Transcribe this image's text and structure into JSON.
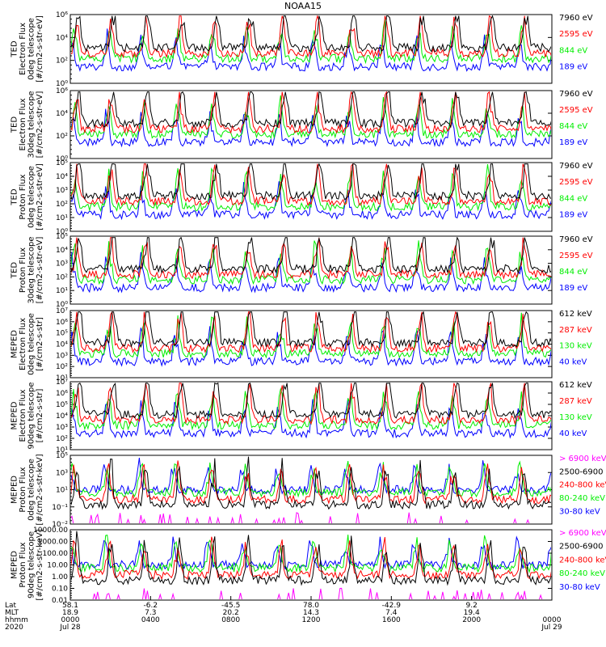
{
  "title": "NOAA15",
  "colors": {
    "black": "#000000",
    "blue": "#0000ff",
    "green": "#00ee00",
    "red": "#ff0000",
    "magenta": "#ff00ff",
    "white": "#ffffff"
  },
  "chart_data": [
    {
      "type": "line",
      "ylabel": [
        "TED",
        "Electron Flux",
        "0deg telescope",
        "[#/cm2-s-str-eV]"
      ],
      "yticks": [
        "10⁰",
        "10²",
        "10⁴",
        "10⁶"
      ],
      "ylim": [
        1,
        1000000
      ],
      "scale": "log",
      "series": [
        {
          "name": "7960 eV",
          "color": "#000000"
        },
        {
          "name": "2595 eV",
          "color": "#ff0000"
        },
        {
          "name": "844 eV",
          "color": "#00ee00"
        },
        {
          "name": "189 eV",
          "color": "#0000ff"
        }
      ]
    },
    {
      "type": "line",
      "ylabel": [
        "TED",
        "Electron Flux",
        "30deg telescope",
        "[#/cm2-s-str-eV]"
      ],
      "yticks": [
        "10⁰",
        "10²",
        "10⁴",
        "10⁶"
      ],
      "ylim": [
        1,
        1000000
      ],
      "scale": "log",
      "series": [
        {
          "name": "7960 eV",
          "color": "#000000"
        },
        {
          "name": "2595 eV",
          "color": "#ff0000"
        },
        {
          "name": "844 eV",
          "color": "#00ee00"
        },
        {
          "name": "189 eV",
          "color": "#0000ff"
        }
      ]
    },
    {
      "type": "line",
      "ylabel": [
        "TED",
        "Proton Flux",
        "0deg telescope",
        "[#/cm2-s-str-eV]"
      ],
      "yticks": [
        "10⁰",
        "10¹",
        "10²",
        "10³",
        "10⁴",
        "10⁵"
      ],
      "ylim": [
        1,
        100000
      ],
      "scale": "log",
      "series": [
        {
          "name": "7960 eV",
          "color": "#000000"
        },
        {
          "name": "2595 eV",
          "color": "#ff0000"
        },
        {
          "name": "844 eV",
          "color": "#00ee00"
        },
        {
          "name": "189 eV",
          "color": "#0000ff"
        }
      ]
    },
    {
      "type": "line",
      "ylabel": [
        "TED",
        "Proton Flux",
        "30deg telescope",
        "[#/cm2-s-str-eV]"
      ],
      "yticks": [
        "10⁰",
        "10¹",
        "10²",
        "10³",
        "10⁴",
        "10⁵"
      ],
      "ylim": [
        1,
        100000
      ],
      "scale": "log",
      "series": [
        {
          "name": "7960 eV",
          "color": "#000000"
        },
        {
          "name": "2595 eV",
          "color": "#ff0000"
        },
        {
          "name": "844 eV",
          "color": "#00ee00"
        },
        {
          "name": "189 eV",
          "color": "#0000ff"
        }
      ]
    },
    {
      "type": "line",
      "ylabel": [
        "MEPED",
        "Electron Flux",
        "0deg telescope",
        "[#/cm2-s-str]"
      ],
      "yticks": [
        "10¹",
        "10²",
        "10³",
        "10⁴",
        "10⁵",
        "10⁶",
        "10⁷"
      ],
      "ylim": [
        10,
        10000000
      ],
      "scale": "log",
      "series": [
        {
          "name": "612 keV",
          "color": "#000000"
        },
        {
          "name": "287 keV",
          "color": "#ff0000"
        },
        {
          "name": "130 keV",
          "color": "#00ee00"
        },
        {
          "name": "40 keV",
          "color": "#0000ff"
        }
      ]
    },
    {
      "type": "line",
      "ylabel": [
        "MEPED",
        "Electron Flux",
        "90deg telescope",
        "[#/cm2-s-str]"
      ],
      "yticks": [
        "10¹",
        "10²",
        "10³",
        "10⁴",
        "10⁵",
        "10⁶",
        "10⁷"
      ],
      "ylim": [
        10,
        10000000
      ],
      "scale": "log",
      "series": [
        {
          "name": "612 keV",
          "color": "#000000"
        },
        {
          "name": "287 keV",
          "color": "#ff0000"
        },
        {
          "name": "130 keV",
          "color": "#00ee00"
        },
        {
          "name": "40 keV",
          "color": "#0000ff"
        }
      ]
    },
    {
      "type": "line",
      "ylabel": [
        "MEPED",
        "Proton Flux",
        "0deg telescope",
        "[#/cm2-s-str-keV]"
      ],
      "yticks": [
        "10⁻²",
        "10⁻¹",
        "10¹",
        "10³",
        "10⁵"
      ],
      "ylim": [
        0.01,
        100000
      ],
      "scale": "log",
      "series": [
        {
          "name": "> 6900 keV",
          "color": "#ff00ff"
        },
        {
          "name": "2500-6900",
          "color": "#000000"
        },
        {
          "name": "240-800 keV",
          "color": "#ff0000"
        },
        {
          "name": "80-240 keV",
          "color": "#00ee00"
        },
        {
          "name": "30-80 keV",
          "color": "#0000ff"
        }
      ]
    },
    {
      "type": "line",
      "ylabel": [
        "MEPED",
        "Proton Flux",
        "90deg telescope",
        "[#/cm2-s-str-keV]"
      ],
      "yticks": [
        "0.01",
        "0.10",
        "1.00",
        "10.00",
        "100.00",
        "1000.00",
        "10000.00"
      ],
      "ylim": [
        0.01,
        10000
      ],
      "scale": "log",
      "series": [
        {
          "name": "> 6900 keV",
          "color": "#ff00ff"
        },
        {
          "name": "2500-6900",
          "color": "#000000"
        },
        {
          "name": "240-800 keV",
          "color": "#ff0000"
        },
        {
          "name": "80-240 keV",
          "color": "#00ee00"
        },
        {
          "name": "30-80 keV",
          "color": "#0000ff"
        }
      ]
    }
  ],
  "xaxis": {
    "row_labels": [
      "Lat",
      "MLT",
      "hhmm",
      "2020"
    ],
    "columns": [
      {
        "lat": "58.1",
        "mlt": "18.9",
        "hhmm": "0000",
        "date": "Jul 28"
      },
      {
        "lat": "-6.2",
        "mlt": "7.3",
        "hhmm": "0400",
        "date": ""
      },
      {
        "lat": "-45.5",
        "mlt": "20.2",
        "hhmm": "0800",
        "date": ""
      },
      {
        "lat": "78.0",
        "mlt": "14.3",
        "hhmm": "1200",
        "date": ""
      },
      {
        "lat": "-42.9",
        "mlt": "7.4",
        "hhmm": "1600",
        "date": ""
      },
      {
        "lat": "9.2",
        "mlt": "19.4",
        "hhmm": "2000",
        "date": ""
      },
      {
        "lat": "",
        "mlt": "",
        "hhmm": "0000",
        "date": "Jul 29"
      }
    ]
  }
}
